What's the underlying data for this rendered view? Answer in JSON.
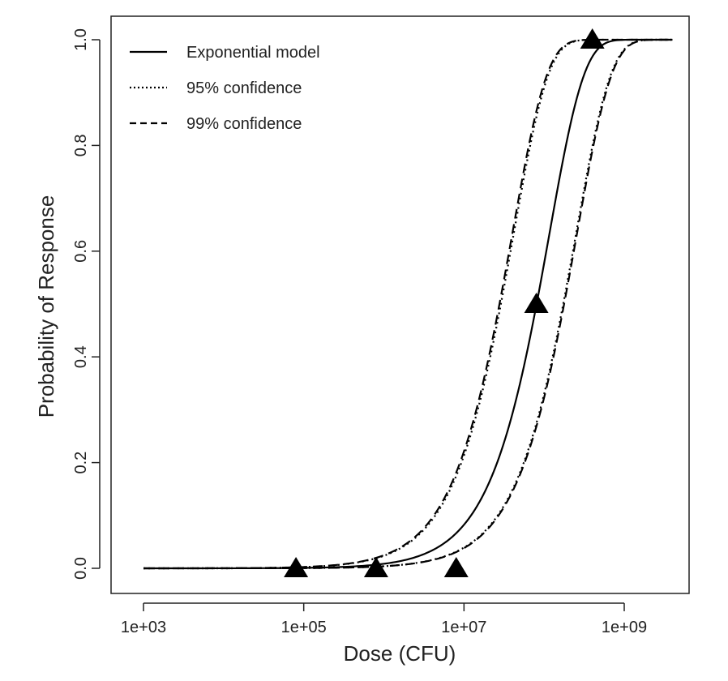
{
  "chart_data": {
    "type": "line",
    "title": "",
    "xlabel": "Dose (CFU)",
    "ylabel": "Probability of Response",
    "x_scale": "log10",
    "xlim": [
      500,
      5000000000
    ],
    "ylim": [
      0,
      1
    ],
    "x_ticks": [
      {
        "value": 1000,
        "label": "1e+03"
      },
      {
        "value": 100000,
        "label": "1e+05"
      },
      {
        "value": 10000000,
        "label": "1e+07"
      },
      {
        "value": 1000000000,
        "label": "1e+09"
      }
    ],
    "y_ticks": [
      {
        "value": 0.0,
        "label": "0.0"
      },
      {
        "value": 0.2,
        "label": "0.2"
      },
      {
        "value": 0.4,
        "label": "0.4"
      },
      {
        "value": 0.6,
        "label": "0.6"
      },
      {
        "value": 0.8,
        "label": "0.8"
      },
      {
        "value": 1.0,
        "label": "1.0"
      }
    ],
    "curve_range": [
      1000,
      4000000000
    ],
    "series": [
      {
        "name": "Exponential model",
        "style": "solid",
        "model": "exponential",
        "k": 8.6e-09
      },
      {
        "name": "95% confidence",
        "style": "dotted",
        "model": "exponential_bounds",
        "k_lower": 4e-09,
        "k_upper": 2.4e-08
      },
      {
        "name": "99% confidence",
        "style": "dashed",
        "model": "exponential_bounds",
        "k_lower": 3.9e-09,
        "k_upper": 2.5e-08
      }
    ],
    "observed_points": [
      {
        "dose": 80000,
        "response": 0.0
      },
      {
        "dose": 800000,
        "response": 0.0
      },
      {
        "dose": 8000000,
        "response": 0.0
      },
      {
        "dose": 80000000,
        "response": 0.5
      },
      {
        "dose": 400000000,
        "response": 1.0
      }
    ],
    "legend": {
      "position": "top-left",
      "entries": [
        {
          "label": "Exponential model",
          "style": "solid"
        },
        {
          "label": "95% confidence",
          "style": "dotted"
        },
        {
          "label": "99% confidence",
          "style": "dashed"
        }
      ]
    },
    "colors": {
      "line": "#000000",
      "text": "#222222",
      "background": "#ffffff"
    }
  }
}
